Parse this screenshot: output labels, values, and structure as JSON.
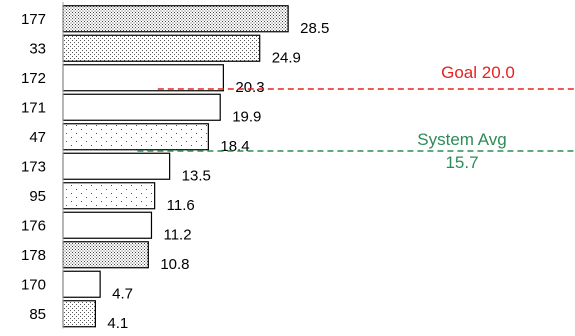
{
  "chart_data": {
    "type": "bar",
    "orientation": "horizontal",
    "categories": [
      "177",
      "33",
      "172",
      "171",
      "47",
      "173",
      "95",
      "176",
      "178",
      "170",
      "85"
    ],
    "values": [
      28.5,
      24.9,
      20.3,
      19.9,
      18.4,
      13.5,
      11.6,
      11.2,
      10.8,
      4.7,
      4.1
    ],
    "value_labels": [
      "28.5",
      "24.9",
      "20.3",
      "19.9",
      "18.4",
      "13.5",
      "11.6",
      "11.2",
      "10.8",
      "4.7",
      "4.1"
    ],
    "patterns": [
      "dense",
      "medium",
      "none",
      "none",
      "sparse",
      "none",
      "sparse",
      "none",
      "dense",
      "none",
      "medium"
    ],
    "xlim": [
      0,
      65
    ],
    "grid": false,
    "reference_lines": [
      {
        "label": "Goal 20.0",
        "label_lines": [
          "Goal 20.0"
        ],
        "value": 20.0,
        "color": "#e8201f"
      },
      {
        "label": "System Avg 15.7",
        "label_lines": [
          "System Avg",
          "15.7"
        ],
        "value": 15.7,
        "color": "#2e8b57"
      }
    ]
  }
}
